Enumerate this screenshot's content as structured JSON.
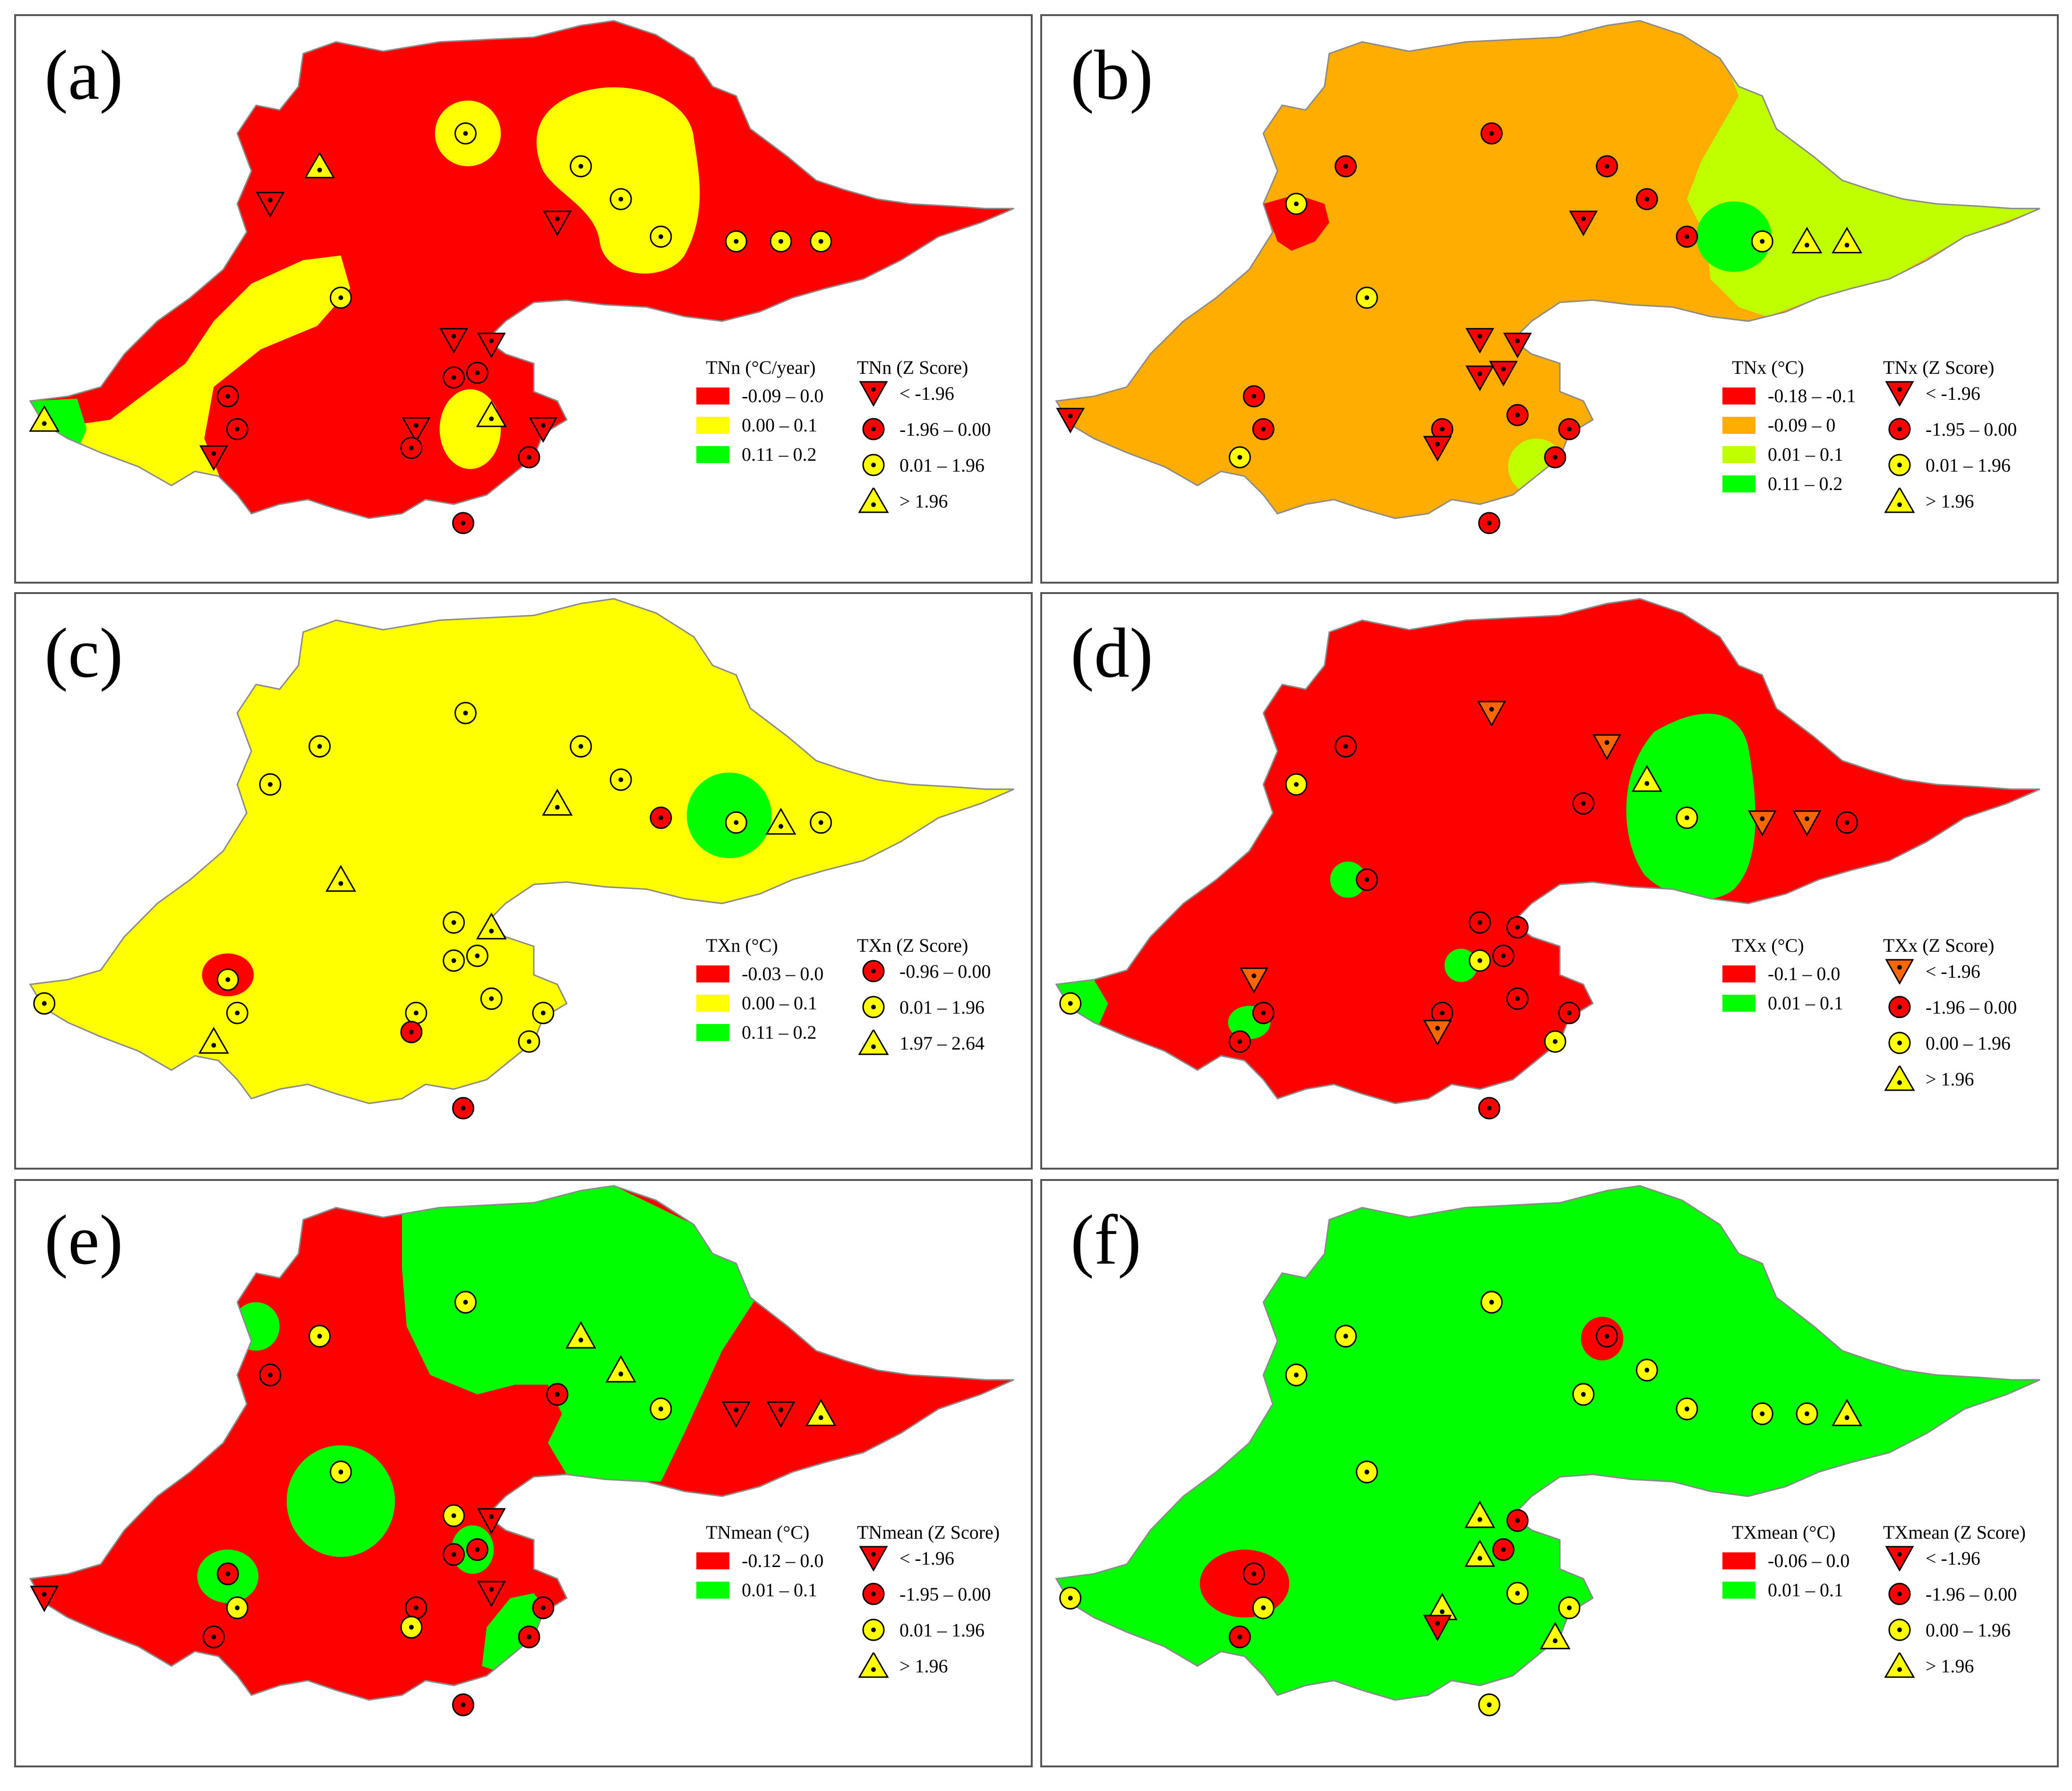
{
  "colors": {
    "red": "#ff0000",
    "yellow": "#ffff00",
    "green": "#00ff00",
    "orange": "#ffad00",
    "lime": "#bfff00",
    "tri_orange": "#ff6600",
    "outline": "#000000"
  },
  "panels": [
    {
      "id": "a",
      "label": "(a)",
      "base_color": "#ff0000",
      "class_title": "TNn (°C/year)",
      "classes": [
        {
          "label": "-0.09 – 0.0",
          "color": "#ff0000"
        },
        {
          "label": "0.00 – 0.1",
          "color": "#ffff00"
        },
        {
          "label": "0.11 – 0.2",
          "color": "#00ff00"
        }
      ],
      "z_title": "TNn (Z Score)",
      "z_items": [
        {
          "symbol": "down-triangle",
          "color": "#ff0000",
          "label": "< -1.96"
        },
        {
          "symbol": "circle",
          "color": "#ff0000",
          "label": "-1.96 – 0.00"
        },
        {
          "symbol": "circle",
          "color": "#ffff00",
          "label": "0.01 – 1.96"
        },
        {
          "symbol": "up-triangle",
          "color": "#ffff00",
          "label": "> 1.96"
        }
      ]
    },
    {
      "id": "b",
      "label": "(b)",
      "base_color": "#ffad00",
      "class_title": "TNx (°C)",
      "classes": [
        {
          "label": "-0.18 – -0.1",
          "color": "#ff0000"
        },
        {
          "label": "-0.09 – 0",
          "color": "#ffad00"
        },
        {
          "label": "0.01 – 0.1",
          "color": "#bfff00"
        },
        {
          "label": "0.11 – 0.2",
          "color": "#00ff00"
        }
      ],
      "z_title": "TNx (Z Score)",
      "z_items": [
        {
          "symbol": "down-triangle",
          "color": "#ff0000",
          "label": "< -1.96"
        },
        {
          "symbol": "circle",
          "color": "#ff0000",
          "label": "-1.95 – 0.00"
        },
        {
          "symbol": "circle",
          "color": "#ffff00",
          "label": "0.01 – 1.96"
        },
        {
          "symbol": "up-triangle",
          "color": "#ffff00",
          "label": "> 1.96"
        }
      ]
    },
    {
      "id": "c",
      "label": "(c)",
      "base_color": "#ffff00",
      "class_title": "TXn (°C)",
      "classes": [
        {
          "label": "-0.03 – 0.0",
          "color": "#ff0000"
        },
        {
          "label": "0.00 – 0.1",
          "color": "#ffff00"
        },
        {
          "label": "0.11 – 0.2",
          "color": "#00ff00"
        }
      ],
      "z_title": "TXn (Z Score)",
      "z_items": [
        {
          "symbol": "circle",
          "color": "#ff0000",
          "label": "-0.96 – 0.00"
        },
        {
          "symbol": "circle",
          "color": "#ffff00",
          "label": "0.01 – 1.96"
        },
        {
          "symbol": "up-triangle",
          "color": "#ffff00",
          "label": "1.97 – 2.64"
        }
      ]
    },
    {
      "id": "d",
      "label": "(d)",
      "base_color": "#ff0000",
      "class_title": "TXx (°C)",
      "classes": [
        {
          "label": "-0.1 – 0.0",
          "color": "#ff0000"
        },
        {
          "label": "0.01 – 0.1",
          "color": "#00ff00"
        }
      ],
      "z_title": "TXx (Z Score)",
      "z_items": [
        {
          "symbol": "down-triangle",
          "color": "#ff6600",
          "label": "< -1.96"
        },
        {
          "symbol": "circle",
          "color": "#ff0000",
          "label": "-1.96 – 0.00"
        },
        {
          "symbol": "circle",
          "color": "#ffff00",
          "label": "0.00 – 1.96"
        },
        {
          "symbol": "up-triangle",
          "color": "#ffff00",
          "label": "> 1.96"
        }
      ]
    },
    {
      "id": "e",
      "label": "(e)",
      "base_color": "#ff0000",
      "class_title": "TNmean (°C)",
      "classes": [
        {
          "label": "-0.12 – 0.0",
          "color": "#ff0000"
        },
        {
          "label": "0.01 – 0.1",
          "color": "#00ff00"
        }
      ],
      "z_title": "TNmean (Z Score)",
      "z_items": [
        {
          "symbol": "down-triangle",
          "color": "#ff0000",
          "label": "< -1.96"
        },
        {
          "symbol": "circle",
          "color": "#ff0000",
          "label": "-1.95 – 0.00"
        },
        {
          "symbol": "circle",
          "color": "#ffff00",
          "label": "0.01 – 1.96"
        },
        {
          "symbol": "up-triangle",
          "color": "#ffff00",
          "label": "> 1.96"
        }
      ]
    },
    {
      "id": "f",
      "label": "(f)",
      "base_color": "#00ff00",
      "class_title": "TXmean (°C)",
      "classes": [
        {
          "label": "-0.06 – 0.0",
          "color": "#ff0000"
        },
        {
          "label": "0.01 – 0.1",
          "color": "#00ff00"
        }
      ],
      "z_title": "TXmean (Z Score)",
      "z_items": [
        {
          "symbol": "down-triangle",
          "color": "#ff0000",
          "label": "< -1.96"
        },
        {
          "symbol": "circle",
          "color": "#ff0000",
          "label": "-1.96 – 0.00"
        },
        {
          "symbol": "circle",
          "color": "#ffff00",
          "label": "0.00 – 1.96"
        },
        {
          "symbol": "up-triangle",
          "color": "#ffff00",
          "label": "> 1.96"
        }
      ]
    }
  ],
  "stations": {
    "a": [
      [
        "circle",
        "y"
      ],
      [
        "circle",
        "y"
      ],
      [
        "circle",
        "y"
      ],
      [
        "circle",
        "y"
      ],
      [
        "circle",
        "y"
      ],
      [
        "circle",
        "y"
      ],
      [
        "circle",
        "y"
      ],
      [
        "down",
        "r"
      ],
      [
        "up",
        "y"
      ],
      [
        "down",
        "r"
      ],
      [
        "down",
        "r"
      ],
      [
        "down",
        "r"
      ],
      [
        "circle",
        "r"
      ],
      [
        "circle",
        "r"
      ],
      [
        "up",
        "y"
      ],
      [
        "down",
        "r"
      ],
      [
        "down",
        "r"
      ],
      [
        "circle",
        "r"
      ],
      [
        "circle",
        "r"
      ],
      [
        "circle",
        "r"
      ],
      [
        "circle",
        "r"
      ],
      [
        "down",
        "r"
      ],
      [
        "up",
        "y"
      ],
      [
        "circle",
        "y"
      ],
      [
        "circle",
        "r"
      ]
    ],
    "b": [
      [
        "circle",
        "r"
      ],
      [
        "circle",
        "r"
      ],
      [
        "circle",
        "r"
      ],
      [
        "circle",
        "r"
      ],
      [
        "circle",
        "y"
      ],
      [
        "up",
        "y"
      ],
      [
        "up",
        "y"
      ],
      [
        "down",
        "r"
      ],
      [
        "circle",
        "r"
      ],
      [
        "circle",
        "y"
      ],
      [
        "down",
        "r"
      ],
      [
        "down",
        "r"
      ],
      [
        "down",
        "r"
      ],
      [
        "down",
        "r"
      ],
      [
        "circle",
        "r"
      ],
      [
        "circle",
        "r"
      ],
      [
        "circle",
        "r"
      ],
      [
        "down",
        "r"
      ],
      [
        "circle",
        "r"
      ],
      [
        "circle",
        "r"
      ],
      [
        "circle",
        "r"
      ],
      [
        "circle",
        "y"
      ],
      [
        "down",
        "r"
      ],
      [
        "circle",
        "y"
      ],
      [
        "circle",
        "r"
      ]
    ],
    "c": [
      [
        "circle",
        "y"
      ],
      [
        "circle",
        "y"
      ],
      [
        "circle",
        "y"
      ],
      [
        "circle",
        "r"
      ],
      [
        "circle",
        "y"
      ],
      [
        "circle",
        "y"
      ],
      [
        "up",
        "y"
      ],
      [
        "up",
        "y"
      ],
      [
        "circle",
        "y"
      ],
      [
        "circle",
        "y"
      ],
      [
        "up",
        "y"
      ],
      [
        "circle",
        "y"
      ],
      [
        "circle",
        "y"
      ],
      [
        "circle",
        "y"
      ],
      [
        "circle",
        "y"
      ],
      [
        "circle",
        "y"
      ],
      [
        "circle",
        "y"
      ],
      [
        "circle",
        "r"
      ],
      [
        "circle",
        "y"
      ],
      [
        "circle",
        "y"
      ],
      [
        "circle",
        "y"
      ],
      [
        "up",
        "y"
      ],
      [
        "circle",
        "y"
      ],
      [
        "up",
        "y"
      ],
      [
        "circle",
        "r"
      ]
    ],
    "d": [
      [
        "down",
        "o"
      ],
      [
        "down",
        "o"
      ],
      [
        "up",
        "y"
      ],
      [
        "circle",
        "y"
      ],
      [
        "down",
        "o"
      ],
      [
        "circle",
        "r"
      ],
      [
        "down",
        "o"
      ],
      [
        "circle",
        "r"
      ],
      [
        "circle",
        "r"
      ],
      [
        "circle",
        "y"
      ],
      [
        "circle",
        "r"
      ],
      [
        "circle",
        "r"
      ],
      [
        "circle",
        "r"
      ],
      [
        "circle",
        "y"
      ],
      [
        "circle",
        "r"
      ],
      [
        "circle",
        "r"
      ],
      [
        "circle",
        "r"
      ],
      [
        "down",
        "o"
      ],
      [
        "circle",
        "y"
      ],
      [
        "down",
        "o"
      ],
      [
        "circle",
        "r"
      ],
      [
        "circle",
        "r"
      ],
      [
        "circle",
        "y"
      ],
      [
        "circle",
        "r"
      ],
      [
        "circle",
        "r"
      ]
    ],
    "e": [
      [
        "circle",
        "y"
      ],
      [
        "up",
        "y"
      ],
      [
        "up",
        "y"
      ],
      [
        "circle",
        "y"
      ],
      [
        "down",
        "r"
      ],
      [
        "up",
        "y"
      ],
      [
        "down",
        "r"
      ],
      [
        "circle",
        "r"
      ],
      [
        "circle",
        "y"
      ],
      [
        "circle",
        "r"
      ],
      [
        "down",
        "r"
      ],
      [
        "circle",
        "y"
      ],
      [
        "circle",
        "r"
      ],
      [
        "circle",
        "r"
      ],
      [
        "down",
        "r"
      ],
      [
        "circle",
        "r"
      ],
      [
        "circle",
        "r"
      ],
      [
        "circle",
        "y"
      ],
      [
        "circle",
        "r"
      ],
      [
        "circle",
        "r"
      ],
      [
        "circle",
        "y"
      ],
      [
        "circle",
        "r"
      ],
      [
        "down",
        "r"
      ],
      [
        "circle",
        "y"
      ],
      [
        "circle",
        "r"
      ]
    ],
    "f": [
      [
        "circle",
        "y"
      ],
      [
        "circle",
        "r"
      ],
      [
        "circle",
        "y"
      ],
      [
        "circle",
        "y"
      ],
      [
        "circle",
        "y"
      ],
      [
        "up",
        "y"
      ],
      [
        "circle",
        "y"
      ],
      [
        "circle",
        "y"
      ],
      [
        "circle",
        "y"
      ],
      [
        "circle",
        "y"
      ],
      [
        "circle",
        "r"
      ],
      [
        "up",
        "y"
      ],
      [
        "circle",
        "r"
      ],
      [
        "up",
        "y"
      ],
      [
        "circle",
        "y"
      ],
      [
        "up",
        "y"
      ],
      [
        "circle",
        "y"
      ],
      [
        "down",
        "r"
      ],
      [
        "up",
        "y"
      ],
      [
        "circle",
        "r"
      ],
      [
        "circle",
        "y"
      ],
      [
        "circle",
        "r"
      ],
      [
        "circle",
        "y"
      ],
      [
        "circle",
        "y"
      ],
      [
        "circle",
        "y"
      ]
    ]
  }
}
